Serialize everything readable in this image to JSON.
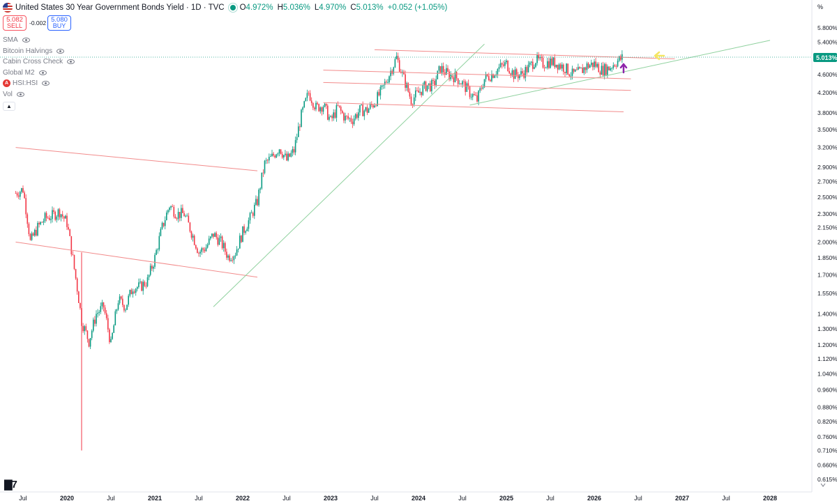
{
  "header": {
    "title": "United States 30 Year Government Bonds Yield · 1D · TVC",
    "open_label": "O",
    "open": "4.972%",
    "high_label": "H",
    "high": "5.036%",
    "low_label": "L",
    "low": "4.970%",
    "close_label": "C",
    "close": "5.013%",
    "change": "+0.052 (+1.05%)"
  },
  "trade": {
    "sell_price": "5.082",
    "sell_label": "SELL",
    "spread": "-0.002",
    "buy_price": "5.080",
    "buy_label": "BUY"
  },
  "indicators": [
    {
      "label": "SMA"
    },
    {
      "label": "Bitcoin Halvings"
    },
    {
      "label": "Cabin Cross Check"
    },
    {
      "label": "Global M2"
    },
    {
      "label": "HSI:HSI",
      "badge": "A"
    },
    {
      "label": "Vol"
    }
  ],
  "axis": {
    "unit": "%",
    "last_price": "5.013%",
    "price_ticks": [
      "5.800%",
      "5.400%",
      "5.013%",
      "4.600%",
      "4.200%",
      "3.800%",
      "3.500%",
      "3.200%",
      "2.900%",
      "2.700%",
      "2.500%",
      "2.300%",
      "2.150%",
      "2.000%",
      "1.850%",
      "1.700%",
      "1.550%",
      "1.400%",
      "1.300%",
      "1.200%",
      "1.120%",
      "1.040%",
      "0.960%",
      "0.880%",
      "0.820%",
      "0.760%",
      "0.710%",
      "0.660%",
      "0.615%"
    ],
    "time_ticks": [
      "Jul",
      "2020",
      "Jul",
      "2021",
      "Jul",
      "2022",
      "Jul",
      "2023",
      "Jul",
      "2024",
      "Jul",
      "2025",
      "Jul",
      "2026",
      "Jul",
      "2027",
      "Jul",
      "2028"
    ]
  },
  "colors": {
    "up": "#089981",
    "down": "#f23645",
    "red_line": "#f28b8b",
    "green_line": "#8fd19e",
    "yellow_arrow": "#f5e663",
    "purple_arrow": "#8e24aa",
    "price_label_bg": "#089981"
  },
  "chart_data": {
    "type": "candlestick",
    "title": "United States 30 Year Government Bonds Yield · 1D · TVC",
    "ylabel": "%",
    "y_scale": "log",
    "ylim": [
      0.6,
      6.0
    ],
    "x_range": [
      "2019-06",
      "2028-06"
    ],
    "last_close": 5.013,
    "series": [
      {
        "name": "US30Y",
        "x": [
          "2019-06",
          "2019-07",
          "2019-08",
          "2019-09",
          "2019-10",
          "2019-11",
          "2019-12",
          "2020-01",
          "2020-02",
          "2020-03",
          "2020-04",
          "2020-05",
          "2020-06",
          "2020-07",
          "2020-08",
          "2020-09",
          "2020-10",
          "2020-11",
          "2020-12",
          "2021-01",
          "2021-02",
          "2021-03",
          "2021-04",
          "2021-05",
          "2021-06",
          "2021-07",
          "2021-08",
          "2021-09",
          "2021-10",
          "2021-11",
          "2021-12",
          "2022-01",
          "2022-02",
          "2022-03",
          "2022-04",
          "2022-05",
          "2022-06",
          "2022-07",
          "2022-08",
          "2022-09",
          "2022-10",
          "2022-11",
          "2022-12",
          "2023-01",
          "2023-02",
          "2023-03",
          "2023-04",
          "2023-05",
          "2023-06",
          "2023-07",
          "2023-08",
          "2023-09",
          "2023-10",
          "2023-11",
          "2023-12",
          "2024-01",
          "2024-02",
          "2024-03",
          "2024-04",
          "2024-05",
          "2024-06",
          "2024-07",
          "2024-08",
          "2024-09",
          "2024-10",
          "2024-11",
          "2024-12",
          "2025-01",
          "2025-02",
          "2025-03",
          "2025-04",
          "2025-05",
          "2025-06",
          "2025-07",
          "2025-08",
          "2025-09",
          "2025-10",
          "2025-11",
          "2025-12",
          "2026-01",
          "2026-02",
          "2026-03",
          "2026-04",
          "2026-05"
        ],
        "values": [
          2.55,
          2.6,
          2.0,
          2.15,
          2.25,
          2.28,
          2.33,
          2.2,
          1.75,
          1.35,
          1.22,
          1.4,
          1.45,
          1.2,
          1.5,
          1.45,
          1.6,
          1.6,
          1.65,
          1.85,
          2.15,
          2.4,
          2.3,
          2.3,
          2.1,
          1.9,
          1.95,
          2.08,
          2.0,
          1.86,
          1.9,
          2.1,
          2.25,
          2.45,
          2.95,
          3.05,
          3.2,
          3.0,
          3.15,
          3.75,
          4.2,
          3.9,
          3.95,
          3.65,
          3.9,
          3.7,
          3.68,
          3.85,
          3.85,
          4.0,
          4.25,
          4.6,
          5.0,
          4.5,
          4.05,
          4.2,
          4.35,
          4.35,
          4.75,
          4.6,
          4.55,
          4.4,
          4.2,
          4.05,
          4.5,
          4.6,
          4.75,
          4.85,
          4.6,
          4.6,
          4.75,
          4.95,
          4.85,
          4.9,
          4.85,
          4.75,
          4.6,
          4.65,
          4.8,
          4.85,
          4.7,
          4.75,
          4.9,
          5.013
        ]
      }
    ],
    "trendlines": [
      {
        "color": "red",
        "from": [
          "2019-06",
          3.2
        ],
        "to": [
          "2022-03",
          2.85
        ]
      },
      {
        "color": "red",
        "from": [
          "2019-06",
          2.0
        ],
        "to": [
          "2022-03",
          1.68
        ]
      },
      {
        "color": "green",
        "from": [
          "2021-09",
          1.45
        ],
        "to": [
          "2024-10",
          5.35
        ]
      },
      {
        "color": "green",
        "from": [
          "2024-08",
          3.95
        ],
        "to": [
          "2028-01",
          5.45
        ]
      },
      {
        "color": "red",
        "from": [
          "2023-07",
          5.2
        ],
        "to": [
          "2026-12",
          4.97
        ]
      },
      {
        "color": "red",
        "from": [
          "2022-12",
          4.7
        ],
        "to": [
          "2026-06",
          4.5
        ]
      },
      {
        "color": "red",
        "from": [
          "2022-12",
          4.42
        ],
        "to": [
          "2026-06",
          4.25
        ]
      },
      {
        "color": "red",
        "from": [
          "2022-12",
          4.0
        ],
        "to": [
          "2026-05",
          3.82
        ]
      }
    ]
  }
}
